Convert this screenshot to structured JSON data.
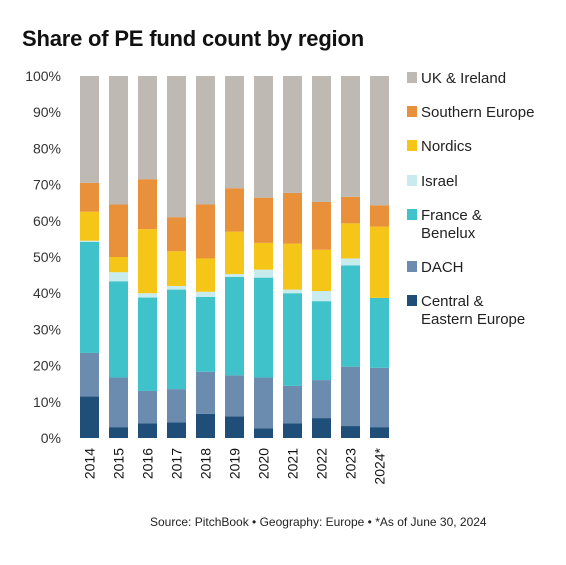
{
  "title": "Share of PE fund count by region",
  "source": "Source: PitchBook  •  Geography: Europe  •  *As of June 30, 2024",
  "chart_data": {
    "type": "bar",
    "stacked": true,
    "title": "Share of PE fund count by region",
    "xlabel": "",
    "ylabel": "",
    "ylim": [
      0,
      100
    ],
    "y_ticks": [
      "0%",
      "10%",
      "20%",
      "30%",
      "40%",
      "50%",
      "60%",
      "70%",
      "80%",
      "90%",
      "100%"
    ],
    "categories": [
      "2014",
      "2015",
      "2016",
      "2017",
      "2018",
      "2019",
      "2020",
      "2021",
      "2022",
      "2023",
      "2024*"
    ],
    "legend_position": "right",
    "series": [
      {
        "name": "Central & Eastern Europe",
        "color": "#1f4e79",
        "values": [
          11.5,
          3.0,
          4.0,
          4.3,
          6.7,
          6.0,
          2.7,
          4.0,
          5.5,
          3.3,
          3.0
        ]
      },
      {
        "name": "DACH",
        "color": "#6b8cae",
        "values": [
          12.0,
          13.7,
          9.0,
          9.2,
          11.6,
          11.3,
          14.0,
          10.4,
          10.5,
          16.4,
          16.4
        ]
      },
      {
        "name": "France & Benelux",
        "color": "#3fc2c9",
        "values": [
          30.7,
          26.6,
          25.8,
          27.5,
          20.7,
          27.2,
          27.6,
          25.6,
          21.8,
          28.0,
          19.3
        ]
      },
      {
        "name": "Israel",
        "color": "#c8ecee",
        "values": [
          0.3,
          2.5,
          1.2,
          1.0,
          1.4,
          0.8,
          2.2,
          1.0,
          2.8,
          1.9,
          0.0
        ]
      },
      {
        "name": "Nordics",
        "color": "#f5c518",
        "values": [
          8.0,
          4.2,
          17.7,
          9.6,
          9.2,
          11.7,
          7.4,
          12.7,
          11.4,
          9.7,
          19.7
        ]
      },
      {
        "name": "Southern Europe",
        "color": "#e8903a",
        "values": [
          8.0,
          14.5,
          13.8,
          9.4,
          14.9,
          12.0,
          12.5,
          14.0,
          13.2,
          7.3,
          5.9
        ]
      },
      {
        "name": "UK & Ireland",
        "color": "#bebab3",
        "values": [
          29.5,
          35.5,
          28.5,
          39.0,
          35.5,
          31.0,
          33.6,
          32.3,
          34.8,
          33.4,
          35.7
        ]
      }
    ],
    "legend_order": [
      "UK & Ireland",
      "Southern Europe",
      "Nordics",
      "Israel",
      "France & Benelux",
      "DACH",
      "Central & Eastern Europe"
    ]
  }
}
